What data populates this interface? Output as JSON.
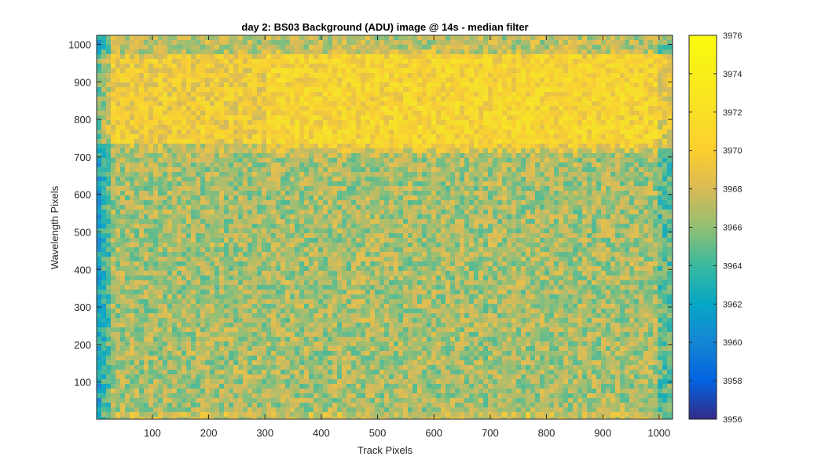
{
  "chart_data": {
    "type": "heatmap",
    "title": "day 2: BS03  Background (ADU) image  @ 14s - median filter",
    "xlabel": "Track Pixels",
    "ylabel": "Wavelength Pixels",
    "xlim": [
      1,
      1024
    ],
    "ylim": [
      1,
      1024
    ],
    "xticks": [
      100,
      200,
      300,
      400,
      500,
      600,
      700,
      800,
      900,
      1000
    ],
    "yticks": [
      100,
      200,
      300,
      400,
      500,
      600,
      700,
      800,
      900,
      1000
    ],
    "colorbar": {
      "colormap": "parula",
      "clim": [
        3956,
        3976
      ],
      "ticks": [
        3956,
        3958,
        3960,
        3962,
        3964,
        3966,
        3968,
        3970,
        3972,
        3974,
        3976
      ]
    },
    "regions": [
      {
        "label": "upper band (wavelength ~700-1000)",
        "approx_value": 3971
      },
      {
        "label": "lower field (wavelength ~20-700)",
        "approx_value": 3967
      },
      {
        "label": "left edge columns (track ~1-30)",
        "approx_value": 3962
      }
    ],
    "grid": false,
    "legend": "none"
  }
}
